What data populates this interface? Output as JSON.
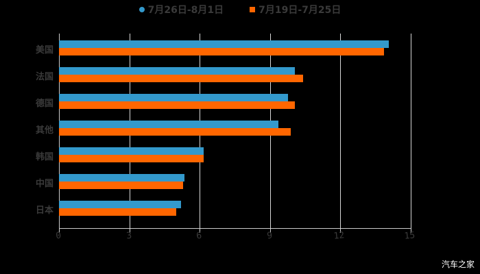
{
  "chart_data": {
    "type": "bar",
    "orientation": "horizontal",
    "title": "",
    "xlabel": "",
    "ylabel": "",
    "xlim": [
      0,
      15
    ],
    "xticks": [
      0,
      3,
      6,
      9,
      12,
      15
    ],
    "grid": true,
    "legend_position": "top",
    "categories": [
      "美国",
      "法国",
      "德国",
      "其他",
      "韩国",
      "中国",
      "日本"
    ],
    "series": [
      {
        "name": "7月26日-8月1日",
        "color": "#3399cc",
        "marker": "circle",
        "values": [
          14.06,
          10.06,
          9.77,
          9.36,
          6.17,
          5.35,
          5.2
        ]
      },
      {
        "name": "7月19日-7月25日",
        "color": "#ff6600",
        "marker": "square",
        "values": [
          13.86,
          10.41,
          10.06,
          9.88,
          6.17,
          5.29,
          5.0
        ]
      }
    ]
  },
  "legend": {
    "series0": "7月26日-8月1日",
    "series1": "7月19日-7月25日"
  },
  "axis": {
    "x_labels": [
      "0",
      "3",
      "6",
      "9",
      "12",
      "15"
    ]
  },
  "watermark": "汽车之家"
}
